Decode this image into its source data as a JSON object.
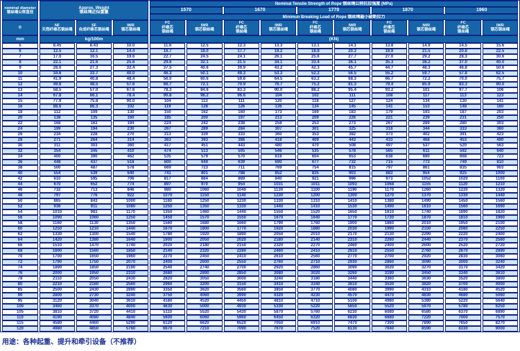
{
  "colors": {
    "header_bg": "#1565a8",
    "stripe": "#cfe4f5",
    "ink": "#1b2f96",
    "line": "#0c1f85"
  },
  "table": {
    "header": {
      "nominal_diameter_en": "nominal diameter",
      "nominal_diameter_zh": "钢丝绳公称直径",
      "d_label": "D",
      "mm_label": "mm",
      "approx_weight_en": "Approx. Weight",
      "approx_weight_zh": "钢丝绳近似重量",
      "weight_cols": [
        {
          "code": "NF",
          "zh": "天然纤维芯钢丝绳"
        },
        {
          "code": "SF",
          "zh": "合成纤维芯钢丝绳"
        },
        {
          "code": "IWR",
          "zh": "钢芯钢丝绳"
        }
      ],
      "kg_label": "kg/100m",
      "tensile_title": "Nominal Tensile Strength of Rope 钢丝绳公称抗拉强度 (MPa)",
      "strengths": [
        "1570",
        "1670",
        "1770",
        "1870",
        "1960"
      ],
      "breaking_title": "Minimun Breaking Load of Rope 钢丝绳最小破断拉力",
      "fc_lines": [
        "FC",
        "纤维芯",
        "钢丝绳"
      ],
      "iwr_lines": [
        "IWR",
        "钢芯钢丝绳"
      ],
      "kn_label": "(KN)"
    },
    "rows": [
      [
        "5",
        "8.45",
        "8.43",
        "10.0",
        "11.6",
        "12.5",
        "12.3",
        "13.3",
        "13.1",
        "14.1",
        "13.8",
        "14.9",
        "14.5",
        "15.6"
      ],
      [
        "6",
        "12.5",
        "12.1",
        "14.4",
        "16.7",
        "18.0",
        "17.7",
        "19.2",
        "18.8",
        "20.3",
        "19.9",
        "21.5",
        "20.8",
        "22.5"
      ],
      [
        "7",
        "17.0",
        "16.5",
        "19.6",
        "22.7",
        "24.5",
        "24.1",
        "26.1",
        "25.6",
        "27.7",
        "27.0",
        "29.2",
        "28.3",
        "30.6"
      ],
      [
        "8",
        "22.1",
        "21.6",
        "25.6",
        "29.6",
        "32.1",
        "31.5",
        "34.1",
        "33.4",
        "36.1",
        "35.3",
        "38.2",
        "37.0",
        "40.0"
      ],
      [
        "9",
        "28.0",
        "27.3",
        "32.4",
        "37.5",
        "40.6",
        "39.9",
        "43.2",
        "42.3",
        "45.7",
        "44.7",
        "48.3",
        "46.8",
        "50.6"
      ],
      [
        "10",
        "34.6",
        "33.7",
        "40.0",
        "46.3",
        "50.1",
        "49.3",
        "53.3",
        "52.2",
        "56.5",
        "55.2",
        "59.7",
        "57.8",
        "62.5"
      ],
      [
        "11",
        "41.9",
        "40.8",
        "48.4",
        "56.0",
        "60.6",
        "59.6",
        "64.5",
        "63.2",
        "68.3",
        "66.7",
        "72.2",
        "70.0",
        "75.7"
      ],
      [
        "12",
        "49.8",
        "48.5",
        "57.6",
        "66.7",
        "72.1",
        "70.9",
        "76.7",
        "75.2",
        "81.3",
        "79.4",
        "85.9",
        "83.3",
        "90.0"
      ],
      [
        "13",
        "58.5",
        "57.0",
        "67.6",
        "78.3",
        "84.6",
        "83.3",
        "90.0",
        "88.2",
        "95.4",
        "93.2",
        "101",
        "97.7",
        "106"
      ],
      [
        "14",
        "67.8",
        "66.1",
        "78.4",
        "90.8",
        "98.2",
        "96.6",
        "104",
        "102",
        "111",
        "108",
        "117",
        "113",
        "123"
      ],
      [
        "15",
        "77.9",
        "75.8",
        "90.0",
        "104",
        "113",
        "111",
        "120",
        "118",
        "127",
        "124",
        "134",
        "130",
        "141"
      ],
      [
        "16",
        "88.6",
        "86.3",
        "102",
        "119",
        "128",
        "126",
        "136",
        "134",
        "145",
        "141",
        "153",
        "148",
        "160"
      ],
      [
        "18",
        "112",
        "109",
        "130",
        "150",
        "162",
        "160",
        "173",
        "169",
        "183",
        "179",
        "193",
        "187",
        "203"
      ],
      [
        "20",
        "138",
        "135",
        "160",
        "185",
        "200",
        "197",
        "213",
        "209",
        "226",
        "221",
        "239",
        "231",
        "250"
      ],
      [
        "22",
        "168",
        "163",
        "194",
        "224",
        "242",
        "238",
        "258",
        "253",
        "273",
        "267",
        "289",
        "280",
        "303"
      ],
      [
        "24",
        "199",
        "194",
        "230",
        "267",
        "289",
        "284",
        "307",
        "301",
        "325",
        "318",
        "344",
        "333",
        "360"
      ],
      [
        "26",
        "234",
        "228",
        "270",
        "313",
        "339",
        "333",
        "360",
        "353",
        "382",
        "373",
        "402",
        "391",
        "423"
      ],
      [
        "28",
        "271",
        "264",
        "314",
        "363",
        "393",
        "386",
        "418",
        "409",
        "443",
        "433",
        "468",
        "453",
        "490"
      ],
      [
        "30",
        "311",
        "303",
        "360",
        "417",
        "451",
        "443",
        "480",
        "470",
        "508",
        "497",
        "537",
        "520",
        "563"
      ],
      [
        "32",
        "354",
        "345",
        "410",
        "474",
        "513",
        "505",
        "546",
        "535",
        "578",
        "565",
        "611",
        "592",
        "640"
      ],
      [
        "34",
        "400",
        "390",
        "462",
        "535",
        "579",
        "570",
        "616",
        "604",
        "653",
        "638",
        "690",
        "668",
        "723"
      ],
      [
        "36",
        "448",
        "437",
        "518",
        "600",
        "649",
        "639",
        "690",
        "677",
        "732",
        "715",
        "773",
        "749",
        "810"
      ],
      [
        "38",
        "500",
        "487",
        "578",
        "669",
        "723",
        "711",
        "769",
        "754",
        "815",
        "797",
        "861",
        "835",
        "903"
      ],
      [
        "40",
        "554",
        "539",
        "640",
        "741",
        "801",
        "788",
        "852",
        "835",
        "903",
        "883",
        "954",
        "925",
        "1000"
      ],
      [
        "42",
        "610",
        "595",
        "706",
        "817",
        "884",
        "869",
        "940",
        "921",
        "996",
        "973",
        "1052",
        "1020",
        "1100"
      ],
      [
        "44",
        "670",
        "652",
        "774",
        "897",
        "970",
        "954",
        "1031",
        "1011",
        "1093",
        "1068",
        "1155",
        "1120",
        "1210"
      ],
      [
        "46",
        "732",
        "713",
        "846",
        "980",
        "1060",
        "1040",
        "1130",
        "1100",
        "1190",
        "1170",
        "1260",
        "1220",
        "1320"
      ],
      [
        "48",
        "797",
        "776",
        "922",
        "1070",
        "1150",
        "1140",
        "1230",
        "1200",
        "1300",
        "1270",
        "1370",
        "1330",
        "1440"
      ],
      [
        "50",
        "865",
        "843",
        "1000",
        "1160",
        "1250",
        "1230",
        "1330",
        "1310",
        "1410",
        "1380",
        "1490",
        "1450",
        "1560"
      ],
      [
        "52",
        "936",
        "911",
        "1080",
        "1250",
        "1350",
        "1330",
        "1440",
        "1410",
        "1530",
        "1490",
        "1610",
        "1560",
        "1690"
      ],
      [
        "54",
        "1010",
        "983",
        "1170",
        "1350",
        "1460",
        "1440",
        "1550",
        "1520",
        "1650",
        "1610",
        "1740",
        "1690",
        "1820"
      ],
      [
        "56",
        "1090",
        "1060",
        "1250",
        "1450",
        "1570",
        "1550",
        "1670",
        "1640",
        "1770",
        "1730",
        "1870",
        "1810",
        "1960"
      ],
      [
        "58",
        "1160",
        "1130",
        "1350",
        "1560",
        "1680",
        "1660",
        "1790",
        "1760",
        "1900",
        "1860",
        "2010",
        "1950",
        "2100"
      ],
      [
        "60",
        "1250",
        "1210",
        "1440",
        "1670",
        "1800",
        "1770",
        "1920",
        "1880",
        "2030",
        "1990",
        "2150",
        "2080",
        "2250"
      ],
      [
        "62",
        "1330",
        "1300",
        "1540",
        "1780",
        "1920",
        "1890",
        "2050",
        "2010",
        "2170",
        "2130",
        "2290",
        "2220",
        "2400"
      ],
      [
        "64",
        "1420",
        "1380",
        "1640",
        "1900",
        "2050",
        "2020",
        "2180",
        "2140",
        "2310",
        "2260",
        "2440",
        "2370",
        "2560"
      ],
      [
        "66",
        "1510",
        "1470",
        "1740",
        "2020",
        "2180",
        "2150",
        "2320",
        "2270",
        "2460",
        "2400",
        "2600",
        "2520",
        "2720"
      ],
      [
        "68",
        "1600",
        "1560",
        "1850",
        "2140",
        "2320",
        "2280",
        "2460",
        "2410",
        "2610",
        "2550",
        "2760",
        "2670",
        "2890"
      ],
      [
        "70",
        "1700",
        "1650",
        "1960",
        "2270",
        "2450",
        "2410",
        "2610",
        "2560",
        "2770",
        "2700",
        "2920",
        "2830",
        "3060"
      ],
      [
        "72",
        "1790",
        "1750",
        "2070",
        "2400",
        "2600",
        "2550",
        "2760",
        "2710",
        "2930",
        "2860",
        "3090",
        "3000",
        "3240"
      ],
      [
        "74",
        "1890",
        "1850",
        "2190",
        "2540",
        "2740",
        "2700",
        "2920",
        "2860",
        "3090",
        "3020",
        "3270",
        "3170",
        "3420"
      ],
      [
        "76",
        "2000",
        "1950",
        "2310",
        "2680",
        "2890",
        "2850",
        "3080",
        "3020",
        "3260",
        "3190",
        "3450",
        "3340",
        "3610"
      ],
      [
        "78",
        "2110",
        "2050",
        "2430",
        "2820",
        "3050",
        "3000",
        "3240",
        "3180",
        "3440",
        "3360",
        "3630",
        "3520",
        "3800"
      ],
      [
        "80",
        "2210",
        "2160",
        "2560",
        "2960",
        "3200",
        "3150",
        "3410",
        "3340",
        "3610",
        "3530",
        "3820",
        "3700",
        "4000"
      ],
      [
        "85",
        "2500",
        "2430",
        "2890",
        "3350",
        "3620",
        "3560",
        "3850",
        "3770",
        "4080",
        "3990",
        "4310",
        "4180",
        "4520"
      ],
      [
        "90",
        "2800",
        "2730",
        "3240",
        "3750",
        "4060",
        "3990",
        "4320",
        "4230",
        "4570",
        "4470",
        "4830",
        "4680",
        "5060"
      ],
      [
        "95",
        "3120",
        "3040",
        "3610",
        "4180",
        "4520",
        "4450",
        "4810",
        "4710",
        "5100",
        "4980",
        "5380",
        "5220",
        "5640"
      ],
      [
        "100",
        "3460",
        "3370",
        "4000",
        "4630",
        "5000",
        "4930",
        "5330",
        "5220",
        "5650",
        "5520",
        "5970",
        "5780",
        "6250"
      ],
      [
        "105",
        "3810",
        "3720",
        "4410",
        "5110",
        "5520",
        "5430",
        "5870",
        "5760",
        "6230",
        "6080",
        "6580",
        "6370",
        "6890"
      ],
      [
        "110",
        "4190",
        "4080",
        "4840",
        "5600",
        "6060",
        "5960",
        "6450",
        "6320",
        "6830",
        "6680",
        "7220",
        "7000",
        "7570"
      ],
      [
        "115",
        "4580",
        "4460",
        "5290",
        "6120",
        "6620",
        "6520",
        "7050",
        "6910",
        "7470",
        "7300",
        "7890",
        "7650",
        "8270"
      ],
      [
        "120",
        "4980",
        "4850",
        "5760",
        "6670",
        "7210",
        "7090",
        "7670",
        "7520",
        "8130",
        "7940",
        "8590",
        "8330",
        "9000"
      ]
    ]
  },
  "footer": {
    "note": "用途：各种起重、提升和牵引设备（不推荐）"
  }
}
